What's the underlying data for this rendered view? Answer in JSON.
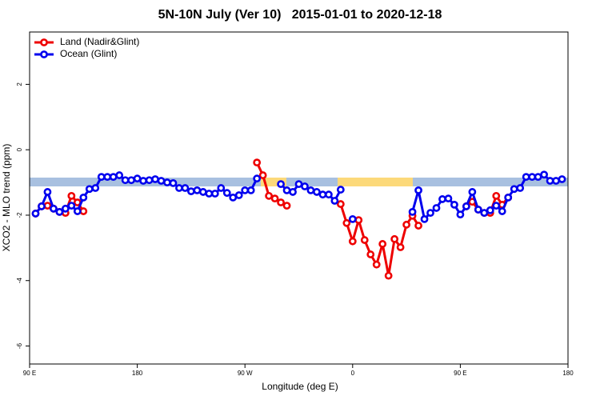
{
  "chart_data": {
    "type": "line",
    "title": "5N-10N July (Ver 10)   2015-01-01 to 2020-12-18",
    "x_label": "Longitude (deg E)",
    "y_label": "XCO2 - MLO trend (ppm)",
    "xlim": [
      90,
      540
    ],
    "ylim": [
      -6.55,
      3.6
    ],
    "xticks": [
      {
        "value": 90,
        "label": "90 E"
      },
      180,
      {
        "value": 270,
        "label": "90 W"
      },
      {
        "value": 360,
        "label": "0"
      },
      {
        "value": 450,
        "label": "90 E"
      },
      {
        "value": 540,
        "label": "180"
      }
    ],
    "yticks": [
      2,
      0,
      -2,
      -4,
      -6
    ],
    "legend": "top-left",
    "x": [
      95,
      100,
      105,
      110,
      115,
      120,
      125,
      130,
      135,
      140,
      145,
      150,
      155,
      160,
      165,
      170,
      175,
      180,
      185,
      190,
      195,
      200,
      205,
      210,
      215,
      220,
      225,
      230,
      235,
      240,
      245,
      250,
      255,
      260,
      265,
      270,
      275,
      280,
      285,
      290,
      295,
      300,
      305,
      310,
      315,
      320,
      325,
      330,
      335,
      340,
      345,
      350,
      355,
      360,
      365,
      370,
      375,
      380,
      385,
      390,
      395,
      400,
      405,
      410,
      415,
      420,
      425,
      430,
      435,
      440,
      445,
      450,
      455,
      460,
      465,
      470,
      475,
      480,
      485,
      490,
      495,
      500,
      505,
      510,
      515,
      520,
      525,
      530,
      535
    ],
    "series": [
      {
        "name": "Land (Nadir&Glint)",
        "color": "#ee0000",
        "values": [
          -1.95,
          -1.73,
          -1.71,
          -1.8,
          -1.9,
          -1.93,
          -1.41,
          -1.61,
          -1.88,
          null,
          null,
          null,
          null,
          null,
          null,
          null,
          null,
          null,
          null,
          null,
          null,
          null,
          null,
          null,
          null,
          null,
          null,
          null,
          null,
          null,
          null,
          null,
          null,
          null,
          null,
          null,
          null,
          -0.39,
          -0.78,
          -1.41,
          -1.49,
          -1.61,
          -1.71,
          null,
          null,
          null,
          null,
          null,
          null,
          null,
          null,
          -1.66,
          -2.24,
          -2.8,
          -2.15,
          -2.76,
          -3.2,
          -3.51,
          -2.88,
          -3.85,
          -2.73,
          -2.98,
          -2.29,
          -2.02,
          -2.32,
          null,
          null,
          null,
          null,
          null,
          null,
          null,
          -1.73,
          -1.59,
          -1.83,
          -1.93,
          -1.93,
          -1.41,
          -1.68,
          -1.46,
          null,
          null,
          null,
          null,
          null,
          null,
          null,
          null,
          null
        ]
      },
      {
        "name": "Ocean (Glint)",
        "color": "#0000ee",
        "values": [
          -1.95,
          -1.73,
          -1.29,
          -1.8,
          -1.9,
          -1.8,
          -1.71,
          -1.88,
          -1.46,
          -1.2,
          -1.17,
          -0.83,
          -0.83,
          -0.83,
          -0.78,
          -0.93,
          -0.93,
          -0.88,
          -0.95,
          -0.93,
          -0.9,
          -0.95,
          -1.0,
          -1.02,
          -1.17,
          -1.17,
          -1.27,
          -1.24,
          -1.29,
          -1.34,
          -1.34,
          -1.17,
          -1.32,
          -1.46,
          -1.39,
          -1.24,
          -1.24,
          -0.88,
          null,
          null,
          null,
          -1.05,
          -1.24,
          -1.29,
          -1.05,
          -1.12,
          -1.24,
          -1.29,
          -1.37,
          -1.37,
          -1.56,
          -1.22,
          null,
          -2.12,
          null,
          null,
          null,
          null,
          null,
          null,
          null,
          null,
          null,
          -1.9,
          -1.24,
          -2.12,
          -1.93,
          -1.78,
          -1.51,
          -1.49,
          -1.68,
          -1.98,
          -1.73,
          -1.29,
          -1.83,
          -1.93,
          -1.85,
          -1.71,
          -1.88,
          -1.46,
          -1.2,
          -1.17,
          -0.83,
          -0.83,
          -0.83,
          -0.76,
          -0.95,
          -0.95,
          -0.9
        ]
      }
    ]
  }
}
